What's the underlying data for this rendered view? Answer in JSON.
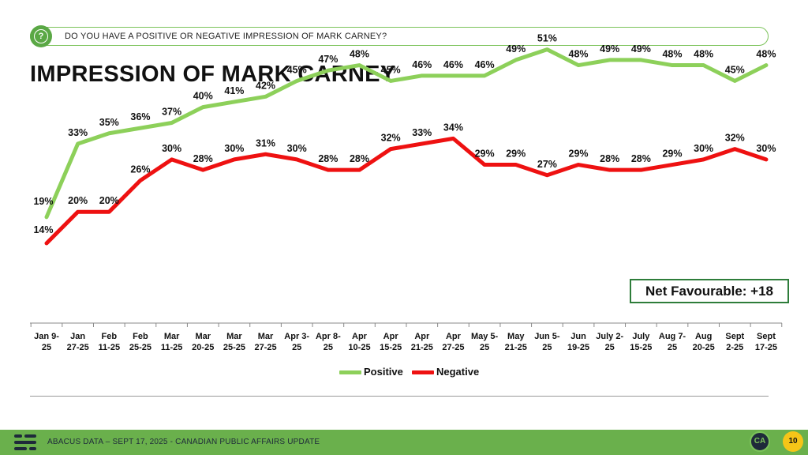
{
  "header": {
    "question": "DO YOU HAVE A POSITIVE OR NEGATIVE IMPRESSION OF MARK CARNEY?",
    "icon": "question-mark-icon"
  },
  "title": "IMPRESSION OF MARK CARNEY",
  "net_favourable": "Net Favourable: +18",
  "footer": {
    "text": "ABACUS DATA – SEPT 17, 2025 - CANADIAN PUBLIC AFFAIRS UPDATE",
    "badge": "CA",
    "page_number": "10"
  },
  "chart_data": {
    "type": "line",
    "categories": [
      [
        "Jan 9-",
        "25"
      ],
      [
        "Jan",
        "27-25"
      ],
      [
        "Feb",
        "11-25"
      ],
      [
        "Feb",
        "25-25"
      ],
      [
        "Mar",
        "11-25"
      ],
      [
        "Mar",
        "20-25"
      ],
      [
        "Mar",
        "25-25"
      ],
      [
        "Mar",
        "27-25"
      ],
      [
        "Apr 3-",
        "25"
      ],
      [
        "Apr 8-",
        "25"
      ],
      [
        "Apr",
        "10-25"
      ],
      [
        "Apr",
        "15-25"
      ],
      [
        "Apr",
        "21-25"
      ],
      [
        "Apr",
        "27-25"
      ],
      [
        "May 5-",
        "25"
      ],
      [
        "May",
        "21-25"
      ],
      [
        "Jun 5-",
        "25"
      ],
      [
        "Jun",
        "19-25"
      ],
      [
        "July 2-",
        "25"
      ],
      [
        "July",
        "15-25"
      ],
      [
        "Aug 7-",
        "25"
      ],
      [
        "Aug",
        "20-25"
      ],
      [
        "Sept",
        "2-25"
      ],
      [
        "Sept",
        "17-25"
      ]
    ],
    "series": [
      {
        "name": "Positive",
        "color": "#8dd05a",
        "values": [
          19,
          33,
          35,
          36,
          37,
          40,
          41,
          42,
          45,
          47,
          48,
          45,
          46,
          46,
          46,
          49,
          51,
          48,
          49,
          49,
          48,
          48,
          45,
          48
        ]
      },
      {
        "name": "Negative",
        "color": "#ee1111",
        "values": [
          14,
          20,
          20,
          26,
          30,
          28,
          30,
          31,
          30,
          28,
          28,
          32,
          33,
          34,
          29,
          29,
          27,
          29,
          28,
          28,
          29,
          30,
          32,
          30
        ]
      }
    ],
    "value_suffix": "%",
    "ylim": [
      0,
      60
    ],
    "legend": "bottom",
    "grid": false
  }
}
